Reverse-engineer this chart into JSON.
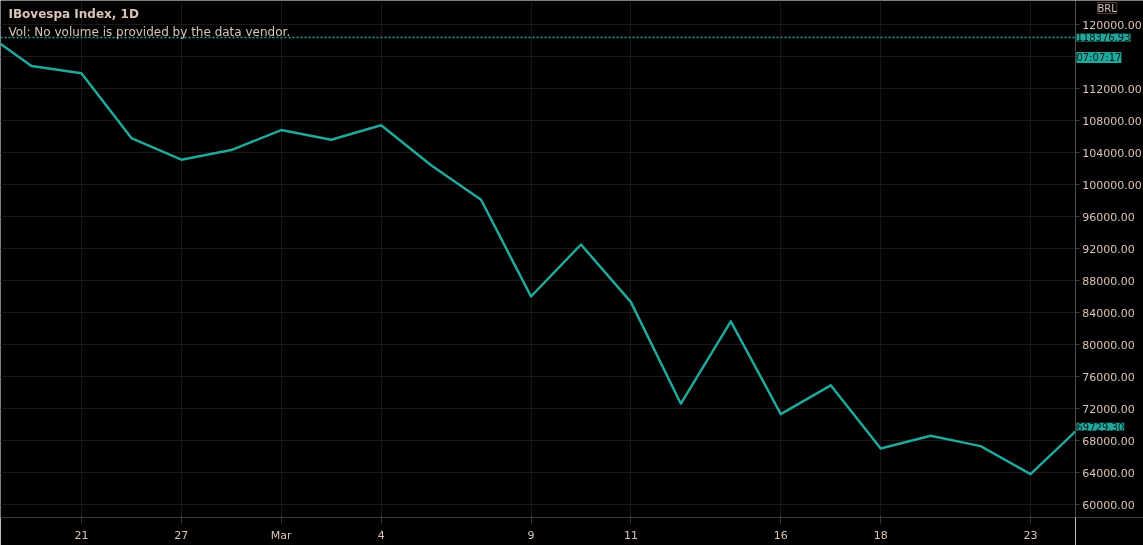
{
  "chart_data": {
    "type": "line",
    "title": "IBovespa Index, 1D",
    "subtitle": "Vol: No volume is provided by the data vendor.",
    "categories": [
      null,
      null,
      "21",
      null,
      "27",
      null,
      "Mar",
      null,
      "4",
      null,
      null,
      "9",
      null,
      "11",
      null,
      null,
      "16",
      null,
      "18",
      null,
      null,
      "23",
      null
    ],
    "series": [
      {
        "color": "#22a79d",
        "values": [
          119300,
          114800,
          113900,
          105800,
          103100,
          104300,
          106800,
          105600,
          107400,
          102400,
          98100,
          86000,
          92500,
          85300,
          72600,
          82900,
          71300,
          74900,
          67000,
          68600,
          67300,
          63800,
          69729.3
        ]
      }
    ],
    "ylim": [
      58375,
      123000
    ],
    "yticks": [
      {
        "value": 60000,
        "label": "60000.00"
      },
      {
        "value": 64000,
        "label": "64000.00"
      },
      {
        "value": 68000,
        "label": "68000.00"
      },
      {
        "value": 72000,
        "label": "72000.00"
      },
      {
        "value": 76000,
        "label": "76000.00"
      },
      {
        "value": 80000,
        "label": "80000.00"
      },
      {
        "value": 84000,
        "label": "84000.00"
      },
      {
        "value": 88000,
        "label": "88000.00"
      },
      {
        "value": 92000,
        "label": "92000.00"
      },
      {
        "value": 96000,
        "label": "96000.00"
      },
      {
        "value": 100000,
        "label": "100000.00"
      },
      {
        "value": 104000,
        "label": "104000.00"
      },
      {
        "value": 108000,
        "label": "108000.00"
      },
      {
        "value": 112000,
        "label": "112000.00"
      },
      {
        "value": 116000,
        "label": null
      },
      {
        "value": 120000,
        "label": "120000.00"
      }
    ],
    "ref_lines": [
      {
        "axis": "y",
        "value": 118376.93,
        "label": "118376.93",
        "color": "#22a79d",
        "line_style": "dotted"
      }
    ],
    "annotations": [
      "BRL",
      "07:07:17",
      "69729.30"
    ],
    "grid": true
  }
}
